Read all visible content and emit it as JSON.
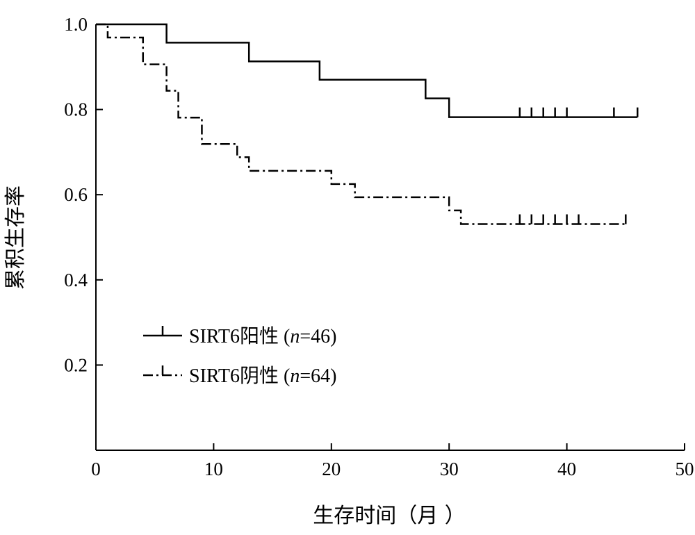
{
  "chart_data": {
    "type": "line",
    "step": true,
    "xlabel": "生存时间（月 ）",
    "ylabel": "累积生存率",
    "xlim": [
      0,
      50
    ],
    "ylim": [
      0,
      1.0
    ],
    "xticks": [
      0,
      10,
      20,
      30,
      40,
      50
    ],
    "xtick_labels": [
      "0",
      "10",
      "20",
      "30",
      "40",
      "50"
    ],
    "yticks": [
      0.2,
      0.4,
      0.6,
      0.8,
      1.0
    ],
    "ytick_labels": [
      "0.2",
      "0.4",
      "0.6",
      "0.8",
      "1.0"
    ],
    "grid": false,
    "legend_position": "lower-left",
    "series": [
      {
        "name": "SIRT6阳性",
        "legend_prefix": "SIRT6阳性 (",
        "legend_n_symbol": "n",
        "legend_suffix": "=46)",
        "line_style": "solid",
        "steps": [
          {
            "x": 0,
            "y": 1.0
          },
          {
            "x": 6,
            "y": 0.957
          },
          {
            "x": 13,
            "y": 0.913
          },
          {
            "x": 19,
            "y": 0.87
          },
          {
            "x": 28,
            "y": 0.826
          },
          {
            "x": 30,
            "y": 0.782
          }
        ],
        "end_x": 46,
        "censored": [
          36,
          37,
          38,
          39,
          40,
          44,
          46
        ]
      },
      {
        "name": "SIRT6阴性",
        "legend_prefix": "SIRT6阴性 (",
        "legend_n_symbol": "n",
        "legend_suffix": "=64)",
        "line_style": "dash-dot",
        "steps": [
          {
            "x": 0,
            "y": 1.0
          },
          {
            "x": 1,
            "y": 0.969
          },
          {
            "x": 4,
            "y": 0.906
          },
          {
            "x": 6,
            "y": 0.844
          },
          {
            "x": 7,
            "y": 0.781
          },
          {
            "x": 9,
            "y": 0.719
          },
          {
            "x": 12,
            "y": 0.688
          },
          {
            "x": 13,
            "y": 0.656
          },
          {
            "x": 20,
            "y": 0.625
          },
          {
            "x": 22,
            "y": 0.594
          },
          {
            "x": 30,
            "y": 0.563
          },
          {
            "x": 31,
            "y": 0.531
          }
        ],
        "end_x": 45,
        "censored": [
          36,
          37,
          38,
          39,
          40,
          41,
          45
        ]
      }
    ]
  }
}
